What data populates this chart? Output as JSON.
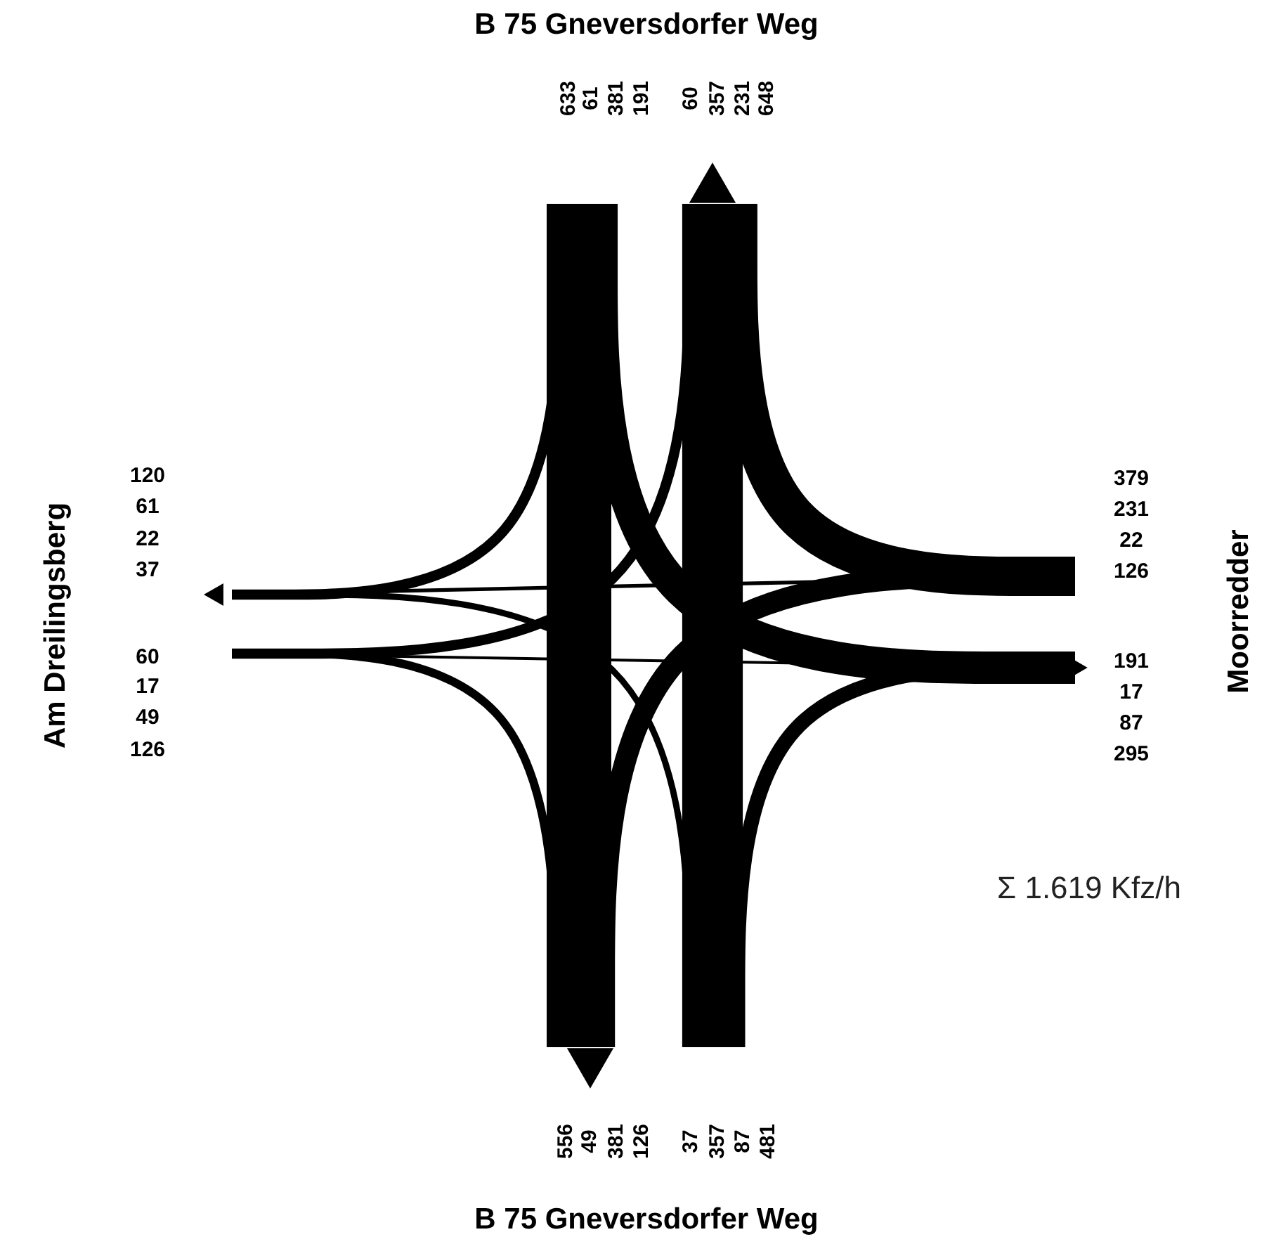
{
  "chart_data": {
    "type": "other",
    "categories": [
      "B 75 Gneversdorfer Weg",
      "Moorredder",
      "B 75 Gneversdorfer Weg",
      "Am Dreilingsberg"
    ],
    "series": [
      {
        "color": "#000000",
        "values": [
          null,
          191,
          381,
          61
        ]
      },
      {
        "color": "#000000",
        "values": [
          231,
          null,
          126,
          22
        ]
      },
      {
        "color": "#000000",
        "values": [
          357,
          87,
          null,
          37
        ]
      },
      {
        "color": "#000000",
        "values": [
          60,
          17,
          49,
          null
        ]
      },
      {
        "color": "#000000",
        "values": [
          null,
          231,
          357,
          60
        ]
      },
      {
        "color": "#000000",
        "values": [
          191,
          null,
          87,
          17
        ]
      },
      {
        "color": "#000000",
        "values": [
          381,
          126,
          null,
          49
        ]
      },
      {
        "color": "#000000",
        "values": [
          61,
          22,
          37,
          null
        ]
      }
    ],
    "data_labels": true,
    "totals": [
      "633",
      "648",
      "379",
      "295",
      "481",
      "556",
      "126",
      "120"
    ],
    "annotations": [
      "Σ 1.619 Kfz/h"
    ]
  }
}
